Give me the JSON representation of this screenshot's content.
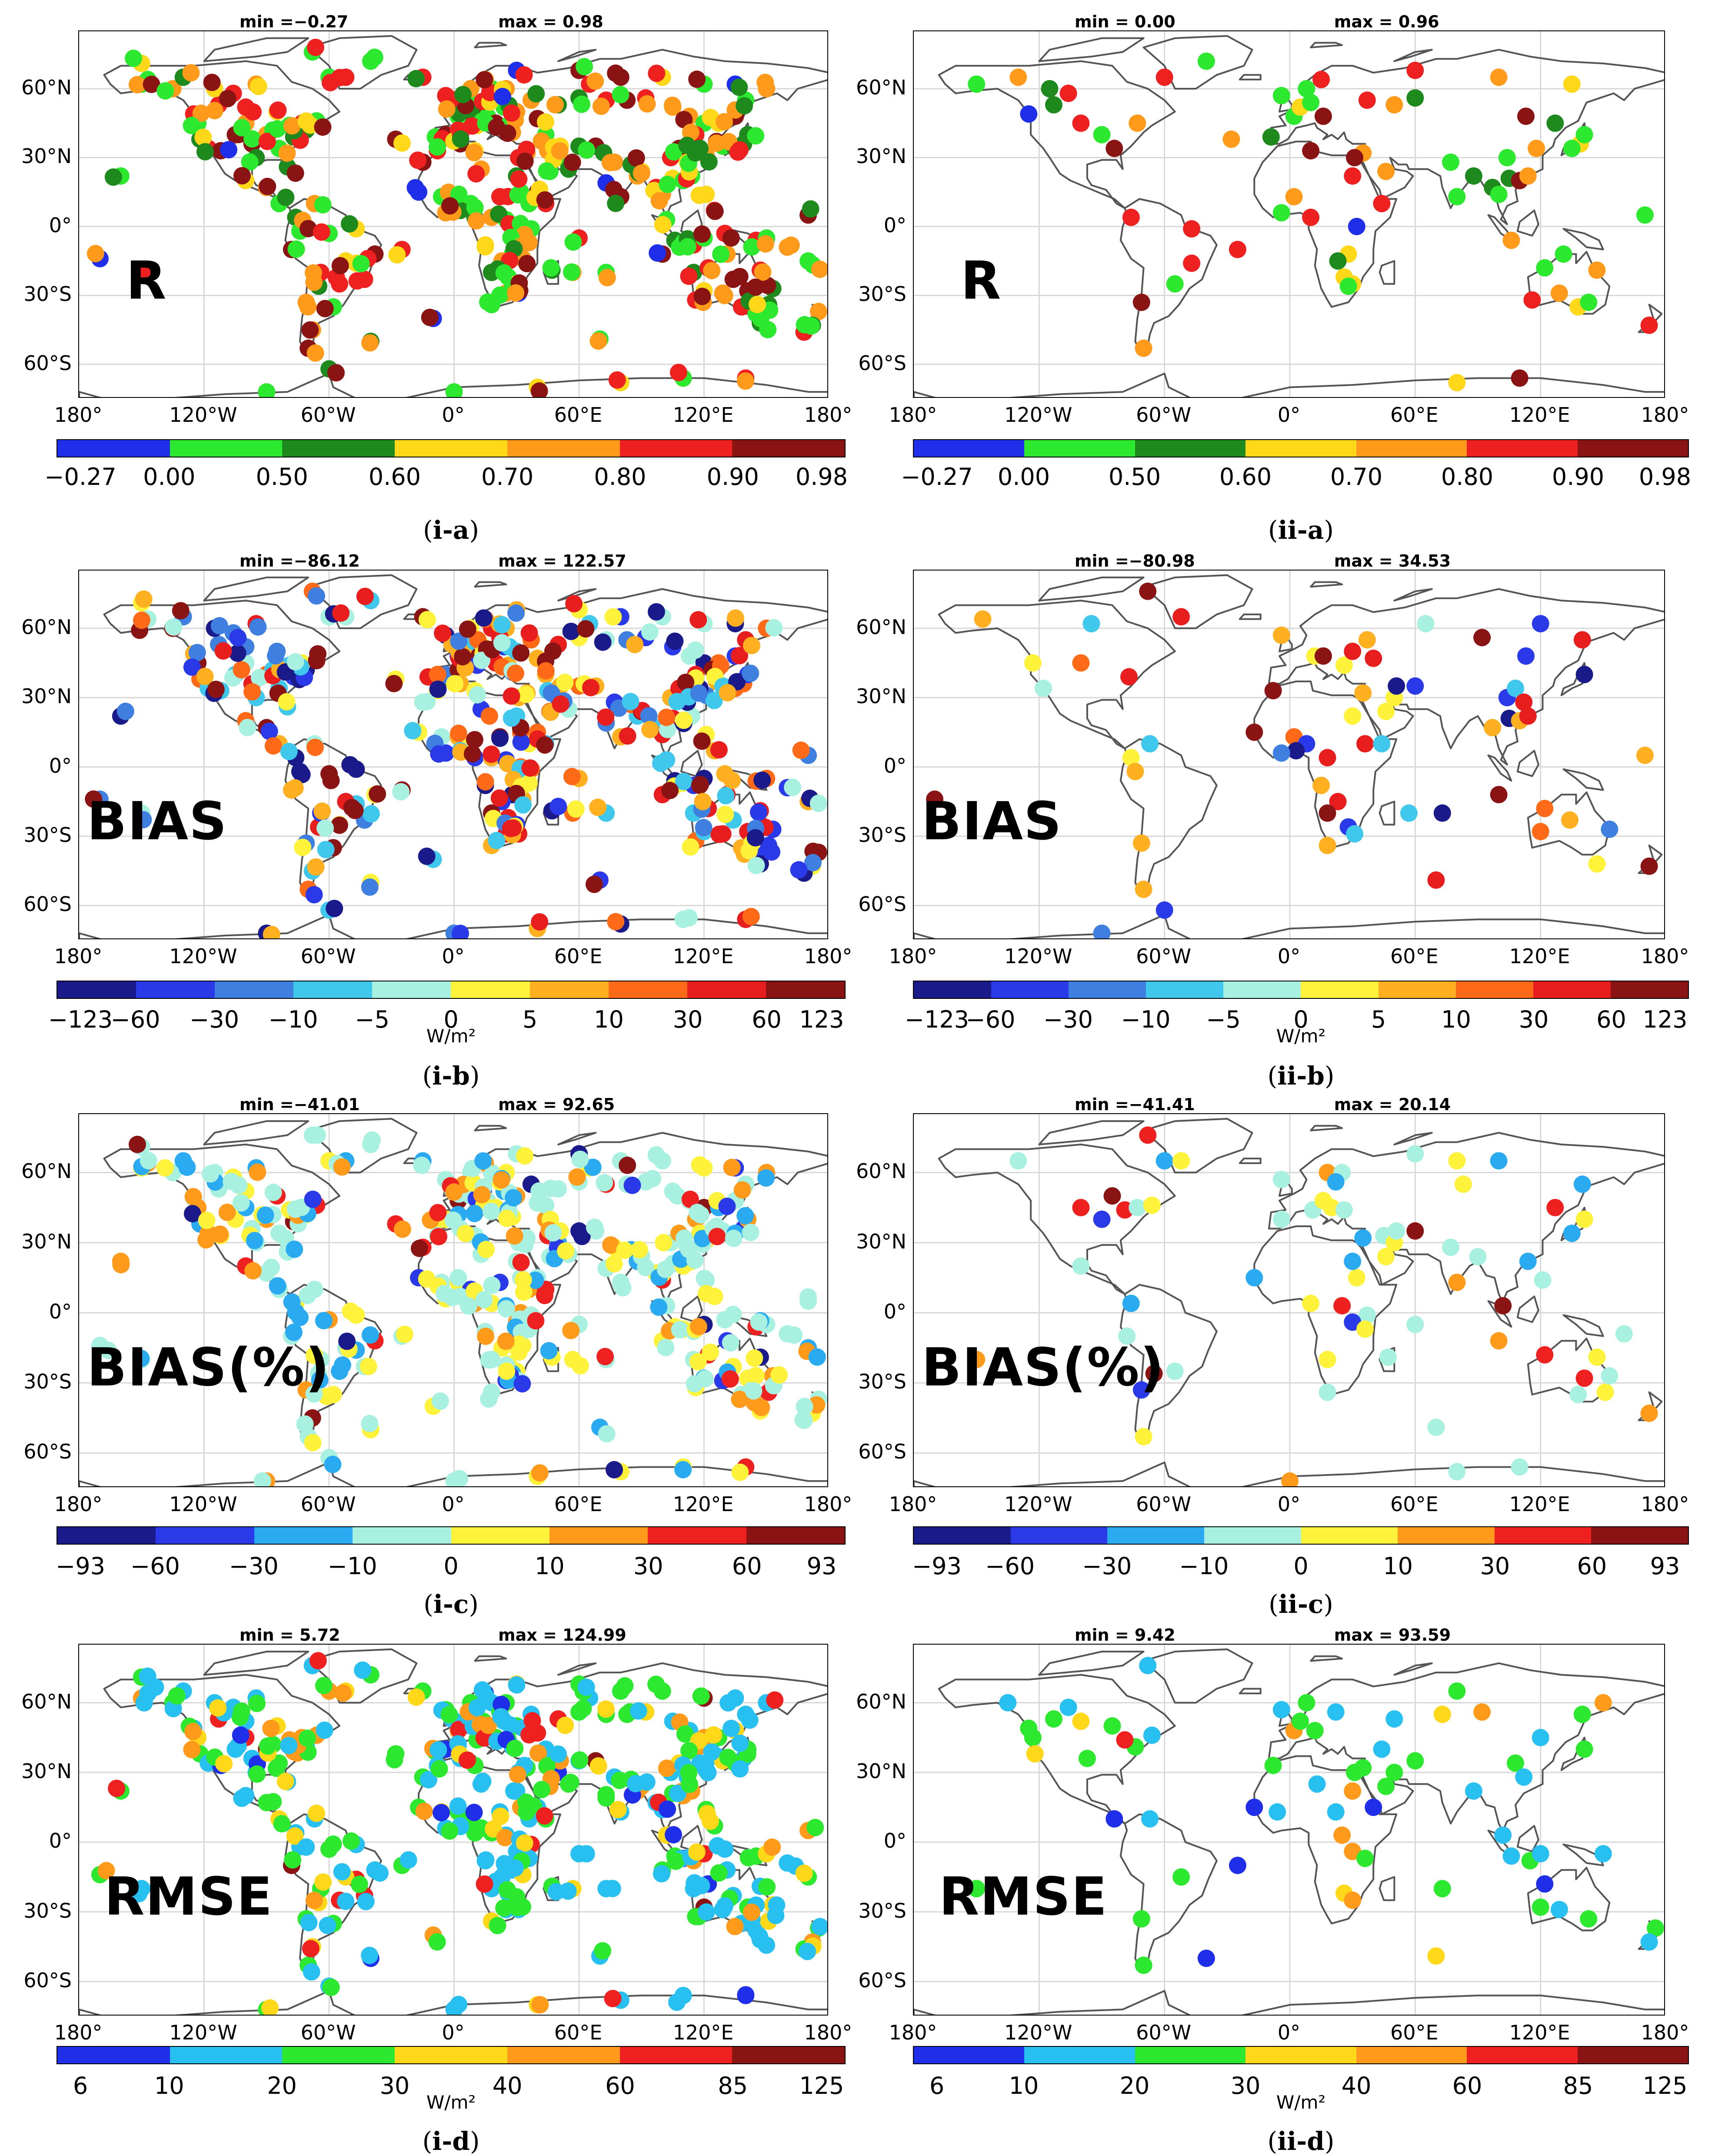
{
  "lat_labels": [
    "60°N",
    "30°N",
    "0°",
    "30°S",
    "60°S"
  ],
  "lon_labels": [
    "180°",
    "120°W",
    "60°W",
    "0°",
    "60°E",
    "120°E",
    "180°"
  ],
  "colormaps": {
    "R": [
      "#1f2ee8",
      "#2ce82f",
      "#1e8a1e",
      "#ffd81a",
      "#ff9a1a",
      "#ef2020",
      "#8a1414"
    ],
    "BIAS": [
      "#1a1a8a",
      "#2a3ae8",
      "#3f7fe0",
      "#40c8ec",
      "#a8f0e0",
      "#fff23a",
      "#ffb020",
      "#ff6a18",
      "#e81e1e",
      "#8a1414"
    ],
    "BIASPCT": [
      "#1a1a8a",
      "#2a3ae8",
      "#2aaaf0",
      "#a8f0e0",
      "#fff23a",
      "#ff9a1a",
      "#ef2020",
      "#8a1414"
    ],
    "RMSE": [
      "#1f2ee8",
      "#28c0f0",
      "#2ce82f",
      "#ffd81a",
      "#ff9a1a",
      "#ef2020",
      "#8a1414"
    ]
  },
  "panels": [
    {
      "id": "ia",
      "label": "R",
      "min_text": "min =−0.27",
      "max_text": "max = 0.98",
      "caption_roman": "i",
      "caption_letter": "a",
      "cmap": "R",
      "ticks": [
        "−0.27",
        "0.00",
        "0.50",
        "0.60",
        "0.70",
        "0.80",
        "0.90",
        "0.98"
      ],
      "unit": "",
      "density": "dense"
    },
    {
      "id": "iia",
      "label": "R",
      "min_text": "min = 0.00",
      "max_text": "max = 0.96",
      "caption_roman": "ii",
      "caption_letter": "a",
      "cmap": "R",
      "ticks": [
        "−0.27",
        "0.00",
        "0.50",
        "0.60",
        "0.70",
        "0.80",
        "0.90",
        "0.98"
      ],
      "unit": "",
      "density": "sparse"
    },
    {
      "id": "ib",
      "label": "BIAS",
      "min_text": "min =−86.12",
      "max_text": "max = 122.57",
      "caption_roman": "i",
      "caption_letter": "b",
      "cmap": "BIAS",
      "ticks": [
        "−123",
        "−60",
        "−30",
        "−10",
        "−5",
        "0",
        "5",
        "10",
        "30",
        "60",
        "123"
      ],
      "unit": "W/m²",
      "density": "dense"
    },
    {
      "id": "iib",
      "label": "BIAS",
      "min_text": "min =−80.98",
      "max_text": "max = 34.53",
      "caption_roman": "ii",
      "caption_letter": "b",
      "cmap": "BIAS",
      "ticks": [
        "−123",
        "−60",
        "−30",
        "−10",
        "−5",
        "0",
        "5",
        "10",
        "30",
        "60",
        "123"
      ],
      "unit": "W/m²",
      "density": "sparse"
    },
    {
      "id": "ic",
      "label": "BIAS(%)",
      "min_text": "min =−41.01",
      "max_text": "max = 92.65",
      "caption_roman": "i",
      "caption_letter": "c",
      "cmap": "BIASPCT",
      "ticks": [
        "−93",
        "−60",
        "−30",
        "−10",
        "0",
        "10",
        "30",
        "60",
        "93"
      ],
      "unit": "",
      "density": "dense"
    },
    {
      "id": "iic",
      "label": "BIAS(%)",
      "min_text": "min =−41.41",
      "max_text": "max = 20.14",
      "caption_roman": "ii",
      "caption_letter": "c",
      "cmap": "BIASPCT",
      "ticks": [
        "−93",
        "−60",
        "−30",
        "−10",
        "0",
        "10",
        "30",
        "60",
        "93"
      ],
      "unit": "",
      "density": "sparse"
    },
    {
      "id": "id",
      "label": "RMSE",
      "min_text": "min = 5.72",
      "max_text": "max = 124.99",
      "caption_roman": "i",
      "caption_letter": "d",
      "cmap": "RMSE",
      "ticks": [
        "6",
        "10",
        "20",
        "30",
        "40",
        "60",
        "85",
        "125"
      ],
      "unit": "W/m²",
      "density": "dense"
    },
    {
      "id": "iid",
      "label": "RMSE",
      "min_text": "min = 9.42",
      "max_text": "max = 93.59",
      "caption_roman": "ii",
      "caption_letter": "d",
      "cmap": "RMSE",
      "ticks": [
        "6",
        "10",
        "20",
        "30",
        "40",
        "60",
        "85",
        "125"
      ],
      "unit": "W/m²",
      "density": "sparse"
    }
  ],
  "grid_color": "#d8d8d8",
  "coast_color": "#555555"
}
